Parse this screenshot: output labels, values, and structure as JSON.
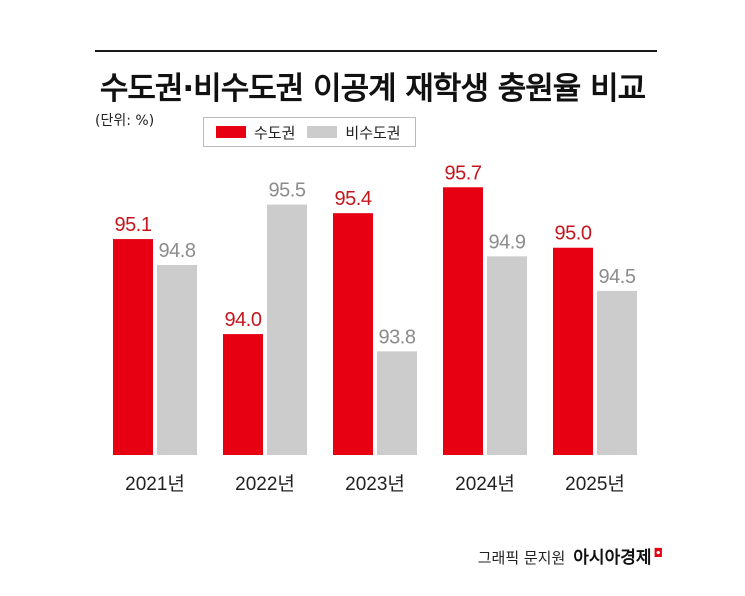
{
  "title": "수도권·비수도권 이공계 재학생 충원율 비교",
  "unit_label": "(단위: %)",
  "legend": [
    {
      "label": "수도권",
      "color": "#e60012"
    },
    {
      "label": "비수도권",
      "color": "#cccccc"
    }
  ],
  "credit": {
    "label": "그래픽 문지원",
    "brand": "아시아경제"
  },
  "chart_data": {
    "type": "bar",
    "categories": [
      "2021년",
      "2022년",
      "2023년",
      "2024년",
      "2025년"
    ],
    "series": [
      {
        "name": "수도권",
        "color": "#e60012",
        "label_color": "#c4161c",
        "values": [
          95.1,
          94.0,
          95.4,
          95.7,
          95.0
        ]
      },
      {
        "name": "비수도권",
        "color": "#cccccc",
        "label_color": "#8c8c8c",
        "values": [
          94.8,
          95.5,
          93.8,
          94.9,
          94.5
        ]
      }
    ],
    "title": "수도권·비수도권 이공계 재학생 충원율 비교",
    "ylabel": "(단위: %)",
    "ylim": [
      92.6,
      95.9
    ],
    "grid": false,
    "legend_position": "top-left",
    "data_labels": true
  }
}
